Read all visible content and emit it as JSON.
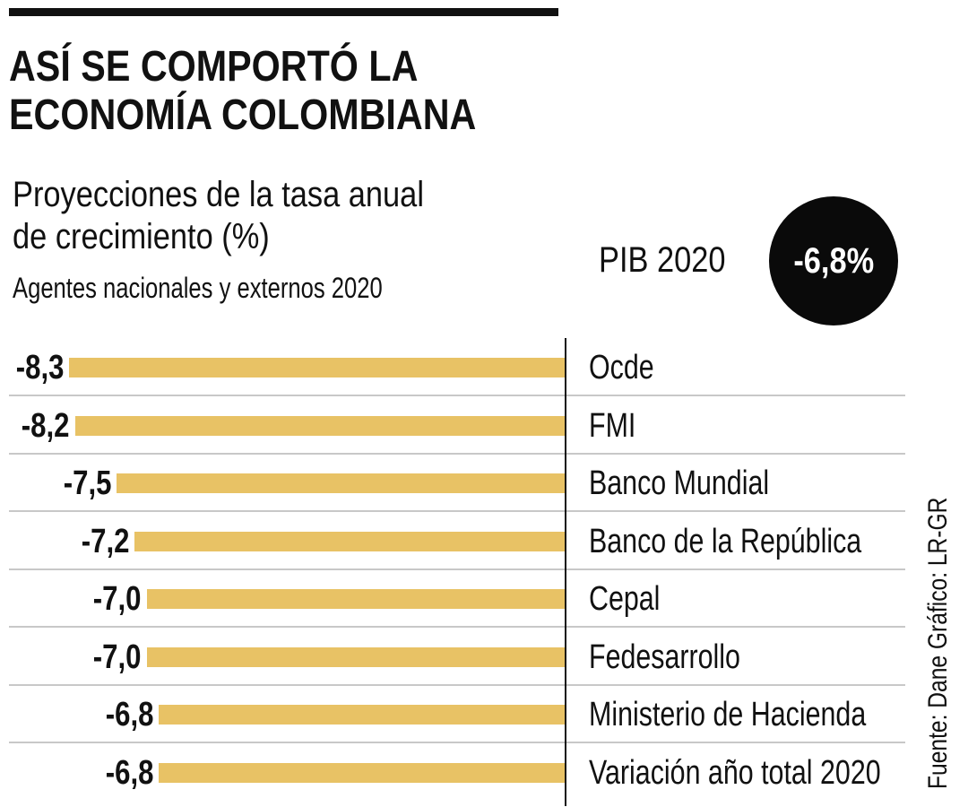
{
  "title_lines": [
    "ASÍ SE COMPORTÓ LA",
    "ECONOMÍA COLOMBIANA"
  ],
  "subtitle_lines": [
    "Proyecciones de la tasa anual",
    "de crecimiento (%)"
  ],
  "subtitle2": "Agentes nacionales y externos 2020",
  "pib": {
    "label": "PIB 2020",
    "value": "-6,8%"
  },
  "source": "Fuente: Dane   Gráfico: LR-GR",
  "colors": {
    "bar": "#E8C265",
    "circle": "#0a0a0a"
  },
  "chart_data": {
    "type": "bar",
    "orientation": "horizontal",
    "title": "Proyecciones de la tasa anual de crecimiento (%)",
    "categories": [
      "Ocde",
      "FMI",
      "Banco Mundial",
      "Banco de la República",
      "Cepal",
      "Fedesarrollo",
      "Ministerio de Hacienda",
      "Variación año total 2020"
    ],
    "values": [
      -8.3,
      -8.2,
      -7.5,
      -7.2,
      -7.0,
      -7.0,
      -6.8,
      -6.8
    ],
    "value_labels": [
      "-8,3",
      "-8,2",
      "-7,5",
      "-7,2",
      "-7,0",
      "-7,0",
      "-6,8",
      "-6,8"
    ],
    "xlim": [
      -8.3,
      0
    ],
    "grid": false
  }
}
